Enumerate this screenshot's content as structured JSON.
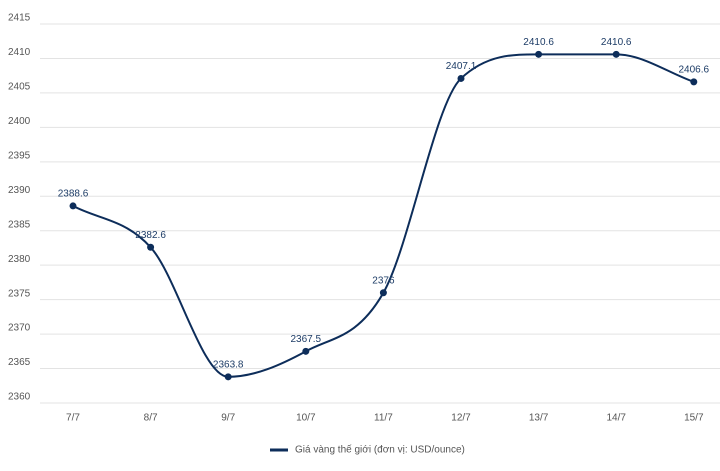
{
  "chart_data": {
    "type": "line",
    "categories": [
      "7/7",
      "8/7",
      "9/7",
      "10/7",
      "11/7",
      "12/7",
      "13/7",
      "14/7",
      "15/7"
    ],
    "series": [
      {
        "name": "Giá vàng thế giới (đơn vị: USD/ounce)",
        "color": "#0d2d5a",
        "values": [
          2388.6,
          2382.6,
          2363.8,
          2367.5,
          2376,
          2407.1,
          2410.6,
          2410.6,
          2406.6
        ]
      }
    ],
    "ylim": [
      2360,
      2415
    ],
    "yticks": [
      2360,
      2365,
      2370,
      2375,
      2380,
      2385,
      2390,
      2395,
      2400,
      2405,
      2410,
      2415
    ],
    "grid": true,
    "legend": "bottom"
  }
}
